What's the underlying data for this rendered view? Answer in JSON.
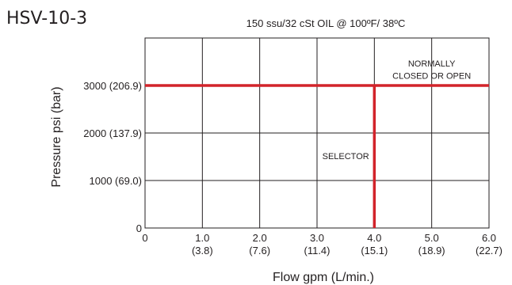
{
  "header": {
    "model": "HSV-10-3",
    "condition": "150 ssu/32 cSt OIL @ 100ºF/ 38ºC"
  },
  "colors": {
    "curve": "#d2232a",
    "grid": "#231f20"
  },
  "chart_data": {
    "type": "line",
    "title": "150 ssu/32 cSt OIL @ 100ºF/ 38ºC",
    "xlabel": "Flow gpm (L/min.)",
    "ylabel": "Pressure psi (bar)",
    "xlim": [
      0,
      6
    ],
    "ylim": [
      0,
      4000
    ],
    "grid": true,
    "x_ticks": [
      {
        "value": 0,
        "label": "0",
        "sub": ""
      },
      {
        "value": 1,
        "label": "1.0",
        "sub": "(3.8)"
      },
      {
        "value": 2,
        "label": "2.0",
        "sub": "(7.6)"
      },
      {
        "value": 3,
        "label": "3.0",
        "sub": "(11.4)"
      },
      {
        "value": 4,
        "label": "4.0",
        "sub": "(15.1)"
      },
      {
        "value": 5,
        "label": "5.0",
        "sub": "(18.9)"
      },
      {
        "value": 6,
        "label": "6.0",
        "sub": "(22.7)"
      }
    ],
    "y_ticks": [
      {
        "value": 0,
        "label": "0"
      },
      {
        "value": 1000,
        "label": "1000 (69.0)"
      },
      {
        "value": 2000,
        "label": "2000 (137.9)"
      },
      {
        "value": 3000,
        "label": "3000 (206.9)"
      }
    ],
    "series": [
      {
        "name": "",
        "x": [
          0,
          6
        ],
        "y": [
          3000,
          3000
        ]
      },
      {
        "name": "",
        "x": [
          4,
          4
        ],
        "y": [
          0,
          3000
        ]
      }
    ],
    "annotations": [
      {
        "text": "NORMALLY",
        "x": 5.0,
        "y": 3400
      },
      {
        "text": "CLOSED OR OPEN",
        "x": 5.0,
        "y": 3140
      },
      {
        "text": "SELECTOR",
        "x": 3.5,
        "y": 1450
      }
    ]
  }
}
